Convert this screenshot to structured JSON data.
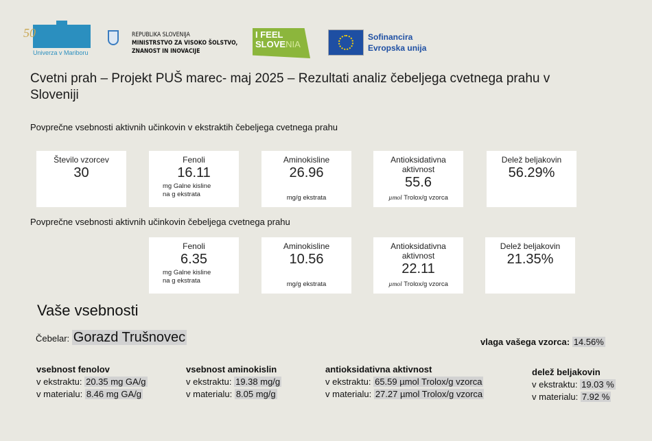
{
  "header": {
    "um_logo": {
      "number": "50",
      "text": "Univerza v Mariboru"
    },
    "ministry": {
      "line1": "REPUBLIKA SLOVENIJA",
      "line2": "MINISTRSTVO ZA VISOKO ŠOLSTVO,",
      "line3": "ZNANOST IN INOVACIJE"
    },
    "ifeel": {
      "line1": "I FEEL",
      "line2a": "SLOVE",
      "line2b": "NIA"
    },
    "eu": {
      "line1": "Sofinancira",
      "line2": "Evropska unija"
    }
  },
  "title": "Cvetni prah – Projekt PUŠ marec- maj 2025 –  Rezultati analiz čebeljega cvetnega prahu v Sloveniji",
  "section1": {
    "heading": "Povprečne vsebnosti aktivnih učinkovin v ekstraktih čebeljega cvetnega prahu",
    "cards": [
      {
        "label": "Število vzorcev",
        "value": "30",
        "unit": ""
      },
      {
        "label": "Fenoli",
        "value": "16.11",
        "unit": "mg  Galne kisline na g ekstrata"
      },
      {
        "label": "Aminokisline",
        "value": "26.96",
        "unit": "mg/g ekstrata"
      },
      {
        "label": "Antioksidativna aktivnost",
        "value": "55.6",
        "unit_i": "µmol",
        "unit": " Trolox/g vzorca"
      },
      {
        "label": "Delež beljakovin",
        "value": "56.29%",
        "unit": ""
      }
    ]
  },
  "section2": {
    "heading": "Povprečne vsebnosti aktivnih učinkovin čebeljega cvetnega prahu",
    "cards": [
      {
        "label": "Fenoli",
        "value": "6.35",
        "unit": "mg  Galne kisline na g ekstrata"
      },
      {
        "label": "Aminokisline",
        "value": "10.56",
        "unit": "mg/g ekstrata"
      },
      {
        "label": "Antioksidativna aktivnost",
        "value": "22.11",
        "unit_i": "µmol",
        "unit": " Trolox/g vzorca"
      },
      {
        "label": "Delež beljakovin",
        "value": "21.35%",
        "unit": ""
      }
    ]
  },
  "yours": {
    "heading": "Vaše vsebnosti",
    "beekeeper_label": "Čebelar:",
    "beekeeper": "Gorazd Trušnovec",
    "moisture_label": "vlaga vašega vzorca:",
    "moisture": "14.56%",
    "groups": [
      {
        "title": "vsebnost fenolov",
        "l1": "v ekstraktu:",
        "v1": "20.35 mg GA/g",
        "l2": "v materialu:",
        "v2": "8.46 mg GA/g"
      },
      {
        "title": "vsebnost aminokislin",
        "l1": "v ekstraktu:",
        "v1": "19.38 mg/g",
        "l2": "v materialu:",
        "v2": "8.05 mg/g"
      },
      {
        "title": "antioksidativna aktivnost",
        "l1": "v ekstraktu:",
        "v1": "65.59 µmol Trolox/g vzorca",
        "l2": "v materialu:",
        "v2": "27.27 µmol Trolox/g vzorca"
      },
      {
        "title": "delež beljakovin",
        "l1": "v ekstraktu:",
        "v1": "19.03 %",
        "l2": "v materialu:",
        "v2": "7.92 %"
      }
    ]
  }
}
